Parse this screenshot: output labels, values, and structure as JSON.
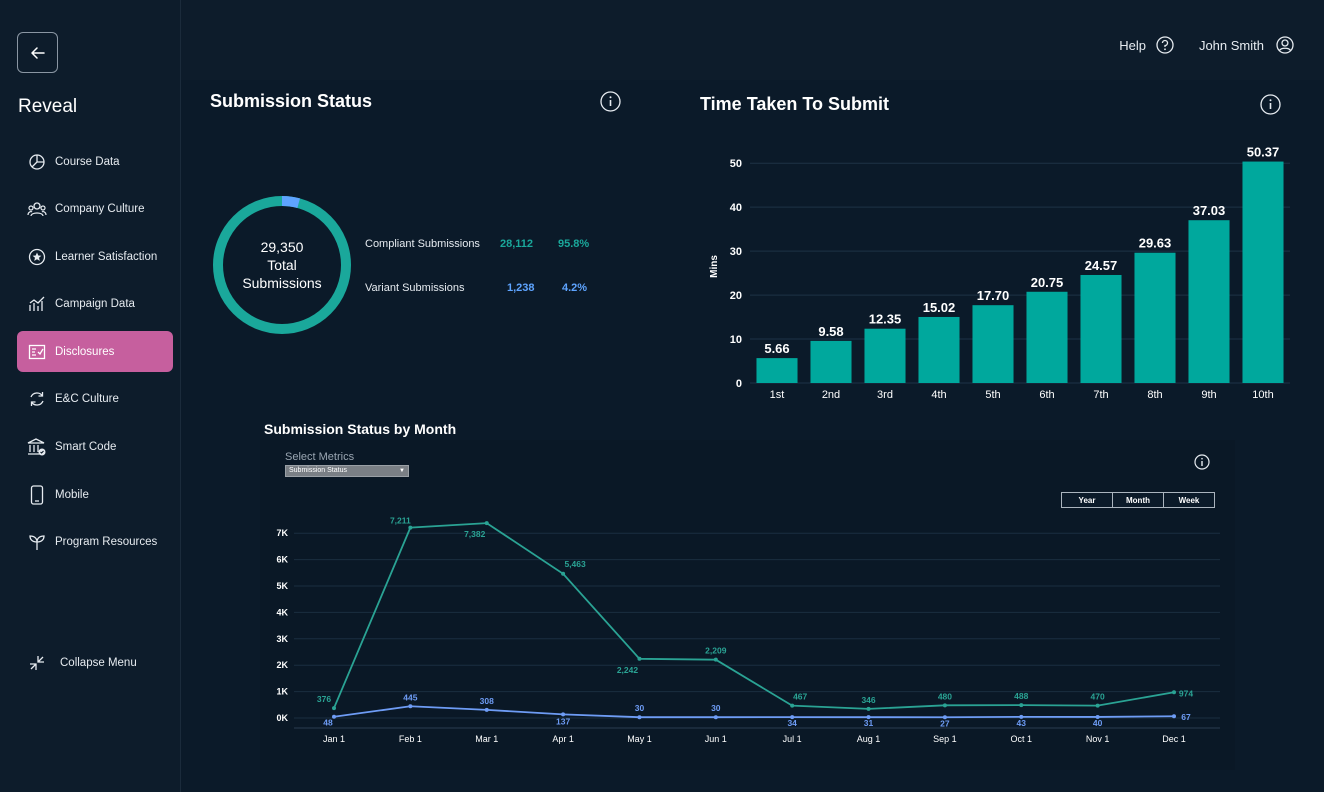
{
  "app": {
    "name": "Reveal"
  },
  "sidebar": {
    "items": [
      {
        "label": "Course Data",
        "icon": "chart-pie-icon"
      },
      {
        "label": "Company Culture",
        "icon": "people-icon"
      },
      {
        "label": "Learner Satisfaction",
        "icon": "star-icon"
      },
      {
        "label": "Campaign Data",
        "icon": "line-chart-icon"
      },
      {
        "label": "Disclosures",
        "icon": "checklist-icon",
        "active": true
      },
      {
        "label": "E&C Culture",
        "icon": "refresh-icon"
      },
      {
        "label": "Smart Code",
        "icon": "bank-icon"
      },
      {
        "label": "Mobile",
        "icon": "mobile-icon"
      },
      {
        "label": "Program Resources",
        "icon": "sprout-icon"
      }
    ],
    "collapse_label": "Collapse Menu"
  },
  "header": {
    "help_label": "Help",
    "user_name": "John Smith"
  },
  "submission_status": {
    "title": "Submission Status",
    "total_value": "29,350",
    "total_line1": "Total",
    "total_line2": "Submissions",
    "legend": [
      {
        "label": "Compliant Submissions",
        "count": "28,112",
        "percent": "95.8%",
        "color": "#1aa89b",
        "fraction": 0.958
      },
      {
        "label": "Variant Submissions",
        "count": "1,238",
        "percent": "4.2%",
        "color": "#5ea4ff",
        "fraction": 0.042
      }
    ]
  },
  "time_chart": {
    "title": "Time Taken To Submit",
    "chart_data": {
      "type": "bar",
      "title": "Time Taken To Submit",
      "ylabel": "Mins",
      "xlabel": "",
      "ylim": [
        0,
        53
      ],
      "yticks": [
        0,
        10,
        20,
        30,
        40,
        50
      ],
      "categories": [
        "1st",
        "2nd",
        "3rd",
        "4th",
        "5th",
        "6th",
        "7th",
        "8th",
        "9th",
        "10th"
      ],
      "values": [
        5.66,
        9.58,
        12.35,
        15.02,
        17.7,
        20.75,
        24.57,
        29.63,
        37.03,
        50.37
      ],
      "value_labels": [
        "5.66",
        "9.58",
        "12.35",
        "15.02",
        "17.70",
        "20.75",
        "24.57",
        "29.63",
        "37.03",
        "50.37"
      ],
      "color": "#00a89d"
    }
  },
  "monthly_chart": {
    "title": "Submission Status by Month",
    "select_label": "Select Metrics",
    "select_value": "Submission Status",
    "ranges": [
      "Year",
      "Month",
      "Week"
    ],
    "chart_data": {
      "type": "line",
      "title": "Submission Status by Month",
      "categories": [
        "Jan 1",
        "Feb 1",
        "Mar 1",
        "Apr 1",
        "May 1",
        "Jun 1",
        "Jul 1",
        "Aug 1",
        "Sep 1",
        "Oct 1",
        "Nov 1",
        "Dec 1"
      ],
      "yticks": [
        "0K",
        "1K",
        "2K",
        "3K",
        "4K",
        "5K",
        "6K",
        "7K"
      ],
      "ylim": [
        0,
        7500
      ],
      "series": [
        {
          "name": "Compliant",
          "color": "#2aa394",
          "values": [
            376,
            7211,
            7382,
            5463,
            2242,
            2209,
            467,
            346,
            480,
            488,
            470,
            974
          ],
          "labels": [
            "376",
            "7,211",
            "7,382",
            "5,463",
            "2,242",
            "2,209",
            "467",
            "346",
            "480",
            "488",
            "470",
            "974"
          ]
        },
        {
          "name": "Variant",
          "color": "#6e9cf5",
          "values": [
            48,
            445,
            308,
            137,
            30,
            30,
            34,
            31,
            27,
            43,
            40,
            67
          ],
          "labels": [
            "48",
            "445",
            "308",
            "137",
            "30",
            "30",
            "34",
            "31",
            "27",
            "43",
            "40",
            "67"
          ]
        }
      ]
    }
  }
}
